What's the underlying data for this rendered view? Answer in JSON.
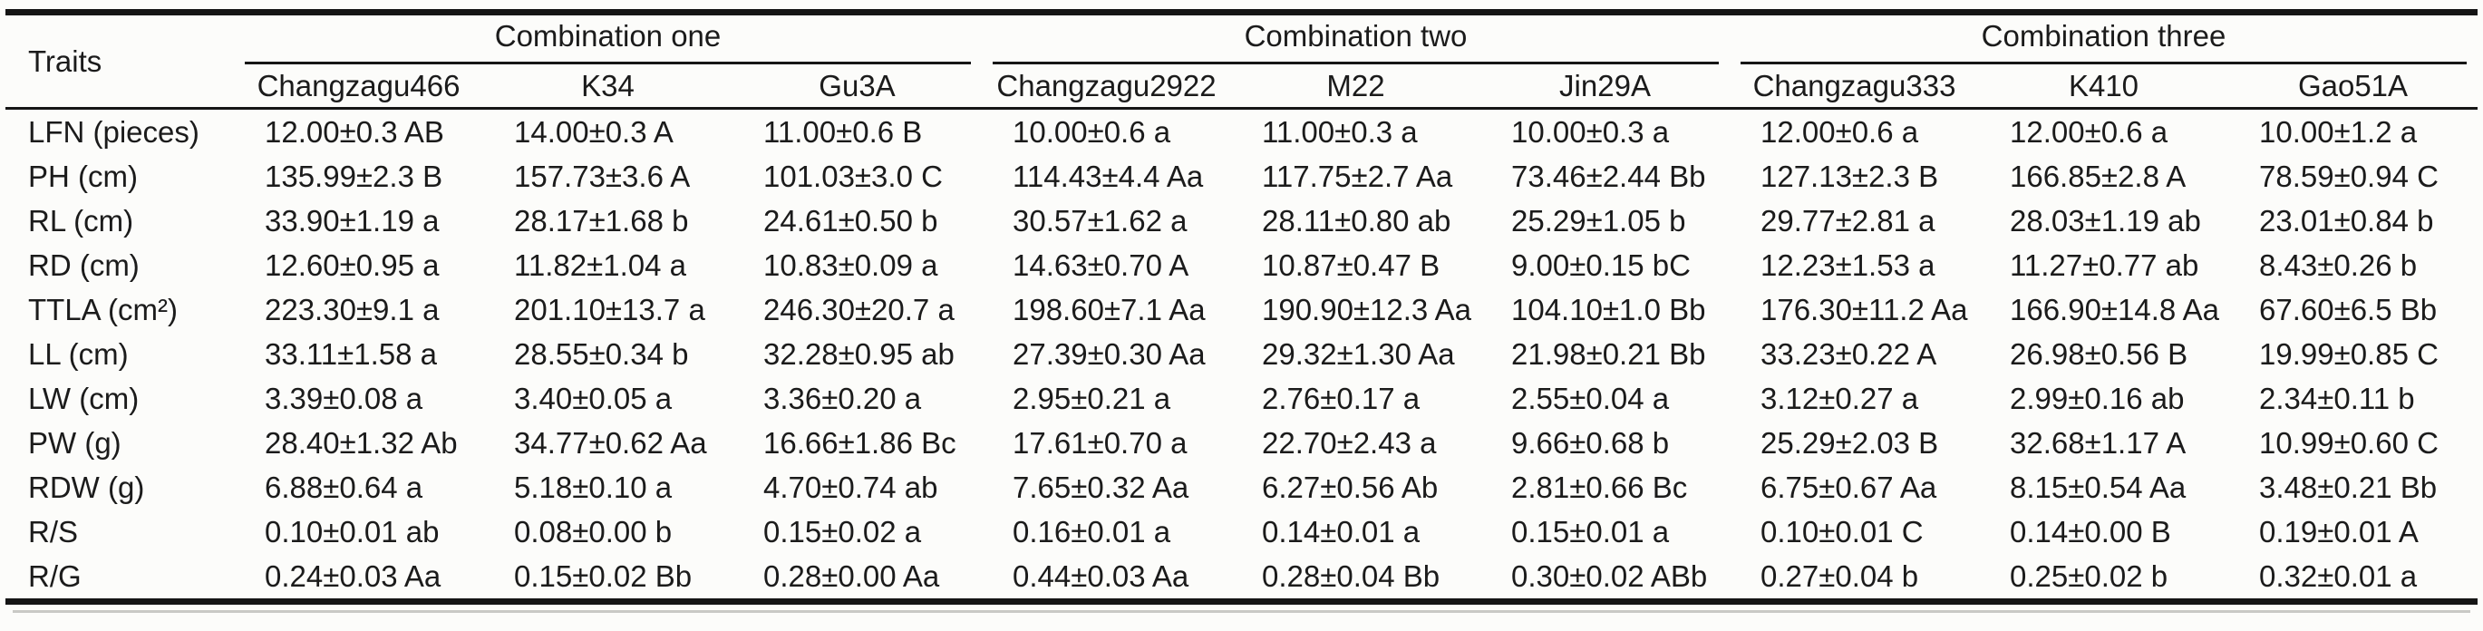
{
  "table": {
    "traits_header": "Traits",
    "groups": [
      {
        "label": "Combination one",
        "columns": [
          "Changzagu466",
          "K34",
          "Gu3A"
        ]
      },
      {
        "label": "Combination two",
        "columns": [
          "Changzagu2922",
          "M22",
          "Jin29A"
        ]
      },
      {
        "label": "Combination three",
        "columns": [
          "Changzagu333",
          "K410",
          "Gao51A"
        ]
      }
    ],
    "rows": [
      {
        "trait": "LFN (pieces)",
        "values": [
          "12.00±0.3 AB",
          "14.00±0.3 A",
          "11.00±0.6 B",
          "10.00±0.6 a",
          "11.00±0.3 a",
          "10.00±0.3 a",
          "12.00±0.6 a",
          "12.00±0.6 a",
          "10.00±1.2 a"
        ]
      },
      {
        "trait": "PH (cm)",
        "values": [
          "135.99±2.3 B",
          "157.73±3.6 A",
          "101.03±3.0 C",
          "114.43±4.4 Aa",
          "117.75±2.7 Aa",
          "73.46±2.44 Bb",
          "127.13±2.3 B",
          "166.85±2.8 A",
          "78.59±0.94 C"
        ]
      },
      {
        "trait": "RL (cm)",
        "values": [
          "33.90±1.19 a",
          "28.17±1.68 b",
          "24.61±0.50 b",
          "30.57±1.62 a",
          "28.11±0.80 ab",
          "25.29±1.05 b",
          "29.77±2.81 a",
          "28.03±1.19 ab",
          "23.01±0.84 b"
        ]
      },
      {
        "trait": "RD (cm)",
        "values": [
          "12.60±0.95 a",
          "11.82±1.04 a",
          "10.83±0.09 a",
          "14.63±0.70 A",
          "10.87±0.47 B",
          "9.00±0.15 bC",
          "12.23±1.53 a",
          "11.27±0.77 ab",
          "8.43±0.26 b"
        ]
      },
      {
        "trait": "TTLA (cm²)",
        "values": [
          "223.30±9.1 a",
          "201.10±13.7 a",
          "246.30±20.7 a",
          "198.60±7.1 Aa",
          "190.90±12.3 Aa",
          "104.10±1.0 Bb",
          "176.30±11.2 Aa",
          "166.90±14.8 Aa",
          "67.60±6.5 Bb"
        ]
      },
      {
        "trait": "LL (cm)",
        "values": [
          "33.11±1.58 a",
          "28.55±0.34 b",
          "32.28±0.95 ab",
          "27.39±0.30 Aa",
          "29.32±1.30 Aa",
          "21.98±0.21 Bb",
          "33.23±0.22 A",
          "26.98±0.56 B",
          "19.99±0.85 C"
        ]
      },
      {
        "trait": "LW (cm)",
        "values": [
          "3.39±0.08 a",
          "3.40±0.05 a",
          "3.36±0.20 a",
          "2.95±0.21 a",
          "2.76±0.17 a",
          "2.55±0.04 a",
          "3.12±0.27 a",
          "2.99±0.16 ab",
          "2.34±0.11 b"
        ]
      },
      {
        "trait": "PW (g)",
        "values": [
          "28.40±1.32 Ab",
          "34.77±0.62 Aa",
          "16.66±1.86 Bc",
          "17.61±0.70 a",
          "22.70±2.43 a",
          "9.66±0.68 b",
          "25.29±2.03 B",
          "32.68±1.17 A",
          "10.99±0.60 C"
        ]
      },
      {
        "trait": "RDW (g)",
        "values": [
          "6.88±0.64 a",
          "5.18±0.10 a",
          "4.70±0.74 ab",
          "7.65±0.32 Aa",
          "6.27±0.56 Ab",
          "2.81±0.66 Bc",
          "6.75±0.67 Aa",
          "8.15±0.54 Aa",
          "3.48±0.21 Bb"
        ]
      },
      {
        "trait": "R/S",
        "values": [
          "0.10±0.01 ab",
          "0.08±0.00 b",
          "0.15±0.02 a",
          "0.16±0.01 a",
          "0.14±0.01 a",
          "0.15±0.01 a",
          "0.10±0.01 C",
          "0.14±0.00 B",
          "0.19±0.01 A"
        ]
      },
      {
        "trait": "R/G",
        "values": [
          "0.24±0.03 Aa",
          "0.15±0.02 Bb",
          "0.28±0.00 Aa",
          "0.44±0.03 Aa",
          "0.28±0.04 Bb",
          "0.30±0.02 ABb",
          "0.27±0.04 b",
          "0.25±0.02 b",
          "0.32±0.01 a"
        ]
      }
    ]
  },
  "colors": {
    "text": "#1b1b1b",
    "rule": "#151515",
    "background": "#fcfcfa"
  }
}
